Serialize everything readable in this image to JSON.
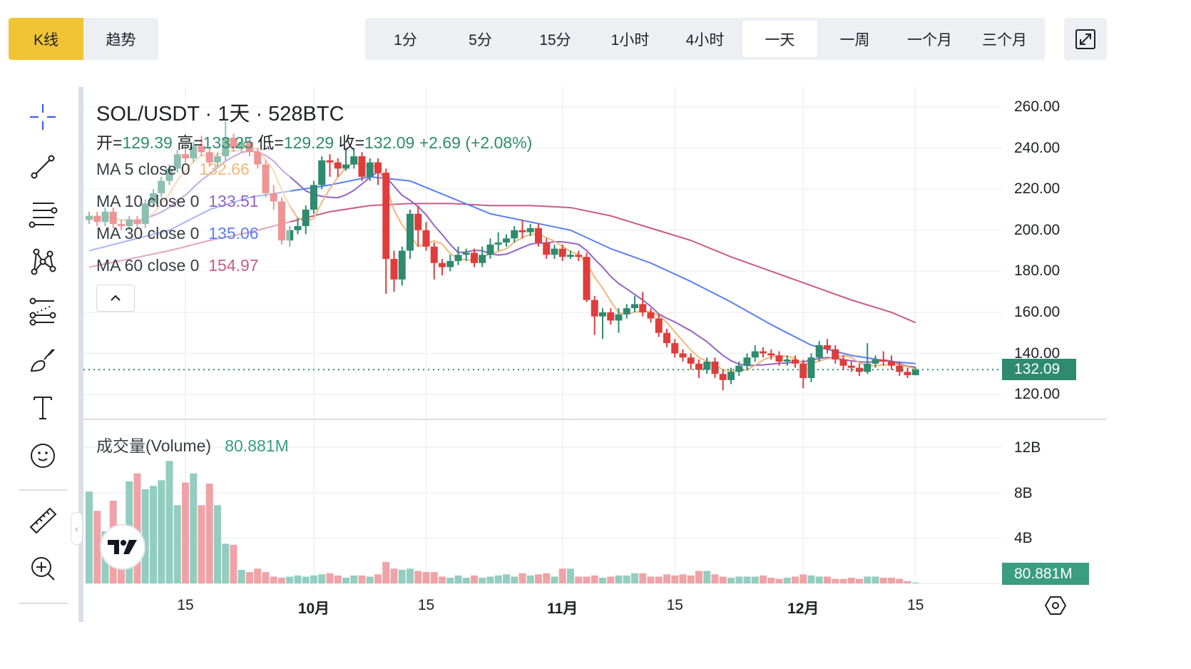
{
  "top_tabs": {
    "kline": "K线",
    "trend": "趋势"
  },
  "intervals": [
    {
      "label": "1分"
    },
    {
      "label": "5分"
    },
    {
      "label": "15分"
    },
    {
      "label": "1小时"
    },
    {
      "label": "4小时"
    },
    {
      "label": "一天",
      "selected": true
    },
    {
      "label": "一周"
    },
    {
      "label": "一个月"
    },
    {
      "label": "三个月"
    }
  ],
  "toolbar": [
    "crosshair-icon",
    "trendline-icon",
    "horizontal-lines-icon",
    "pattern-icon",
    "fib-channel-icon",
    "brush-icon",
    "text-icon",
    "emoji-icon",
    "ruler-icon",
    "zoom-in-icon"
  ],
  "legend": {
    "title": "SOL/USDT · 1天 · 528BTC",
    "open_label": "开=",
    "open": "129.39",
    "high_label": "高=",
    "high": "133.25",
    "low_label": "低=",
    "low": "129.29",
    "close_label": "收=",
    "close": "132.09",
    "change": "+2.69 (+2.08%)",
    "ma": [
      {
        "label": "MA 5 close 0",
        "value": "132.66",
        "color": "#f0b87a"
      },
      {
        "label": "MA 10 close 0",
        "value": "133.51",
        "color": "#9563c4"
      },
      {
        "label": "MA 30 close 0",
        "value": "135.06",
        "color": "#5b7ff5"
      },
      {
        "label": "MA 60 close 0",
        "value": "154.97",
        "color": "#c95b85"
      }
    ],
    "volume_label": "成交量(Volume)",
    "volume_value": "80.881M"
  },
  "colors": {
    "up": "#2e8b6e",
    "down": "#e03c3c",
    "up_volume": "#93cdc0",
    "down_volume": "#f0a3a7",
    "accent": "#f0c435"
  },
  "current_price_tag": "132.09",
  "current_volume_tag": "80.881M",
  "chart_data": {
    "type": "candlestick",
    "price_axis": {
      "ticks": [
        "260.00",
        "240.00",
        "220.00",
        "200.00",
        "180.00",
        "160.00",
        "140.00",
        "120.00"
      ],
      "range": [
        120,
        260
      ]
    },
    "volume_axis": {
      "ticks": [
        "12B",
        "8B",
        "4B"
      ],
      "unit": "B"
    },
    "x_ticks": [
      {
        "label": "15",
        "date": "09-15",
        "bold": false
      },
      {
        "label": "10月",
        "date": "10-01",
        "bold": true
      },
      {
        "label": "15",
        "date": "10-15",
        "bold": false
      },
      {
        "label": "11月",
        "date": "11-01",
        "bold": true
      },
      {
        "label": "15",
        "date": "11-15",
        "bold": false
      },
      {
        "label": "12月",
        "date": "12-01",
        "bold": true
      },
      {
        "label": "15",
        "date": "12-15",
        "bold": false
      }
    ],
    "dates": [
      "09-03",
      "09-04",
      "09-05",
      "09-06",
      "09-07",
      "09-08",
      "09-09",
      "09-10",
      "09-11",
      "09-12",
      "09-13",
      "09-14",
      "09-15",
      "09-16",
      "09-17",
      "09-18",
      "09-19",
      "09-20",
      "09-21",
      "09-22",
      "09-23",
      "09-24",
      "09-25",
      "09-26",
      "09-27",
      "09-28",
      "09-29",
      "09-30",
      "10-01",
      "10-02",
      "10-03",
      "10-04",
      "10-05",
      "10-06",
      "10-07",
      "10-08",
      "10-09",
      "10-10",
      "10-11",
      "10-12",
      "10-13",
      "10-14",
      "10-15",
      "10-16",
      "10-17",
      "10-18",
      "10-19",
      "10-20",
      "10-21",
      "10-22",
      "10-23",
      "10-24",
      "10-25",
      "10-26",
      "10-27",
      "10-28",
      "10-29",
      "10-30",
      "10-31",
      "11-01",
      "11-02",
      "11-03",
      "11-04",
      "11-05",
      "11-06",
      "11-07",
      "11-08",
      "11-09",
      "11-10",
      "11-11",
      "11-12",
      "11-13",
      "11-14",
      "11-15",
      "11-16",
      "11-17",
      "11-18",
      "11-19",
      "11-20",
      "11-21",
      "11-22",
      "11-23",
      "11-24",
      "11-25",
      "11-26",
      "11-27",
      "11-28",
      "11-29",
      "11-30",
      "12-01",
      "12-02",
      "12-03",
      "12-04",
      "12-05",
      "12-06",
      "12-07",
      "12-08",
      "12-09",
      "12-10",
      "12-11",
      "12-12",
      "12-13",
      "12-14",
      "12-15"
    ],
    "open": [
      205,
      207,
      204,
      209,
      203,
      202,
      205,
      203,
      213,
      218,
      224,
      230,
      237,
      235,
      241,
      238,
      233,
      236,
      245,
      240,
      243,
      238,
      232,
      218,
      214,
      195,
      200,
      202,
      210,
      222,
      234,
      233,
      230,
      232,
      236,
      226,
      233,
      228,
      186,
      176,
      190,
      208,
      200,
      192,
      184,
      182,
      185,
      188,
      189,
      184,
      188,
      193,
      194,
      196,
      200,
      199,
      201,
      194,
      188,
      191,
      187,
      188,
      187,
      166,
      158,
      160,
      156,
      159,
      162,
      164,
      160,
      157,
      150,
      145,
      140,
      138,
      135,
      132,
      136,
      130,
      127,
      131,
      134,
      138,
      141,
      140,
      139,
      136,
      137,
      135,
      128,
      138,
      144,
      142,
      137,
      134,
      133,
      131,
      135,
      137,
      136,
      134,
      131,
      129.39
    ],
    "high": [
      209,
      209,
      211,
      211,
      205,
      207,
      207,
      215,
      220,
      226,
      232,
      239,
      241,
      243,
      246,
      240,
      238,
      253,
      247,
      245,
      245,
      240,
      234,
      222,
      216,
      202,
      206,
      212,
      224,
      236,
      237,
      235,
      240,
      240,
      238,
      235,
      235,
      230,
      190,
      192,
      210,
      212,
      204,
      194,
      186,
      188,
      192,
      191,
      191,
      192,
      196,
      199,
      198,
      202,
      205,
      203,
      203,
      196,
      193,
      193,
      190,
      190,
      189,
      168,
      162,
      162,
      162,
      164,
      168,
      170,
      162,
      159,
      152,
      147,
      142,
      140,
      137,
      138,
      138,
      132,
      133,
      136,
      140,
      144,
      143,
      142,
      141,
      139,
      139,
      137,
      140,
      146,
      147,
      144,
      139,
      136,
      135,
      145,
      139,
      141,
      139,
      136,
      133,
      133.25
    ],
    "low": [
      203,
      202,
      202,
      201,
      200,
      200,
      201,
      201,
      211,
      216,
      222,
      228,
      233,
      233,
      236,
      231,
      231,
      234,
      238,
      238,
      236,
      230,
      216,
      210,
      193,
      192,
      198,
      198,
      208,
      220,
      226,
      226,
      229,
      230,
      224,
      224,
      222,
      169,
      170,
      173,
      186,
      192,
      190,
      176,
      178,
      180,
      183,
      185,
      182,
      182,
      186,
      190,
      192,
      194,
      196,
      197,
      192,
      186,
      186,
      185,
      186,
      185,
      165,
      149,
      147,
      154,
      150,
      157,
      160,
      158,
      155,
      148,
      143,
      138,
      136,
      132,
      128,
      130,
      128,
      122,
      125,
      129,
      132,
      136,
      138,
      137,
      134,
      134,
      133,
      123,
      126,
      136,
      140,
      135,
      132,
      131,
      129,
      130,
      133,
      134,
      132,
      129,
      128,
      129.29
    ],
    "close": [
      207,
      204,
      209,
      203,
      202,
      205,
      203,
      213,
      218,
      224,
      230,
      237,
      235,
      241,
      238,
      233,
      236,
      245,
      240,
      243,
      238,
      232,
      218,
      214,
      195,
      200,
      202,
      210,
      222,
      234,
      233,
      230,
      232,
      236,
      226,
      233,
      228,
      186,
      176,
      190,
      208,
      200,
      192,
      184,
      182,
      185,
      188,
      189,
      184,
      188,
      193,
      194,
      196,
      200,
      199,
      201,
      194,
      188,
      191,
      187,
      188,
      187,
      166,
      158,
      160,
      156,
      159,
      162,
      164,
      160,
      157,
      150,
      145,
      140,
      138,
      135,
      132,
      136,
      130,
      127,
      131,
      134,
      138,
      141,
      140,
      139,
      136,
      137,
      135,
      128,
      138,
      144,
      142,
      137,
      134,
      133,
      131,
      135,
      137,
      136,
      134,
      131,
      129.39,
      132.09
    ],
    "volume_b": [
      8.1,
      6.4,
      4.6,
      7.3,
      5.0,
      9.0,
      9.7,
      8.3,
      8.6,
      9.1,
      10.8,
      6.9,
      8.9,
      9.7,
      6.9,
      8.8,
      6.9,
      3.5,
      3.4,
      1.2,
      1.0,
      1.3,
      1.0,
      0.6,
      0.5,
      0.6,
      0.7,
      0.6,
      0.7,
      0.8,
      0.9,
      0.7,
      0.5,
      0.7,
      0.7,
      0.6,
      0.8,
      1.9,
      1.3,
      1.2,
      1.3,
      1.1,
      1.0,
      1.0,
      0.6,
      0.5,
      0.7,
      0.5,
      0.7,
      0.5,
      0.6,
      0.7,
      0.8,
      0.6,
      0.9,
      0.7,
      0.8,
      0.9,
      0.6,
      1.3,
      1.3,
      0.6,
      0.6,
      0.7,
      0.5,
      0.6,
      0.7,
      0.7,
      0.9,
      0.9,
      0.6,
      0.6,
      0.8,
      0.7,
      0.8,
      0.7,
      1.1,
      1.1,
      0.8,
      0.6,
      0.5,
      0.6,
      0.6,
      0.6,
      0.7,
      0.5,
      0.4,
      0.5,
      0.6,
      0.8,
      0.7,
      0.6,
      0.6,
      0.4,
      0.4,
      0.5,
      0.4,
      0.6,
      0.6,
      0.5,
      0.5,
      0.4,
      0.2,
      0.081
    ],
    "ma30": {
      "dates": [
        "09-03",
        "09-08",
        "09-13",
        "09-18",
        "09-23",
        "09-28",
        "10-03",
        "10-08",
        "10-13",
        "10-18",
        "10-23",
        "10-28",
        "11-02",
        "11-07",
        "11-12",
        "11-17",
        "11-22",
        "11-27",
        "12-02",
        "12-07",
        "12-12",
        "12-15"
      ],
      "values": [
        190,
        195,
        200,
        210,
        216,
        219,
        222,
        226,
        224,
        216,
        208,
        204,
        200,
        191,
        184,
        175,
        165,
        154,
        144,
        139,
        136,
        135.06
      ]
    },
    "ma60": {
      "dates": [
        "09-03",
        "09-08",
        "09-13",
        "09-18",
        "09-23",
        "09-28",
        "10-03",
        "10-08",
        "10-13",
        "10-18",
        "10-23",
        "10-28",
        "11-02",
        "11-07",
        "11-12",
        "11-17",
        "11-22",
        "11-27",
        "12-02",
        "12-07",
        "12-12",
        "12-15"
      ],
      "values": [
        182,
        186,
        190,
        195,
        199,
        204,
        209,
        212,
        213,
        213,
        212,
        212,
        211,
        207,
        201,
        195,
        187,
        180,
        173,
        166,
        160,
        154.97
      ]
    },
    "grid": true
  }
}
